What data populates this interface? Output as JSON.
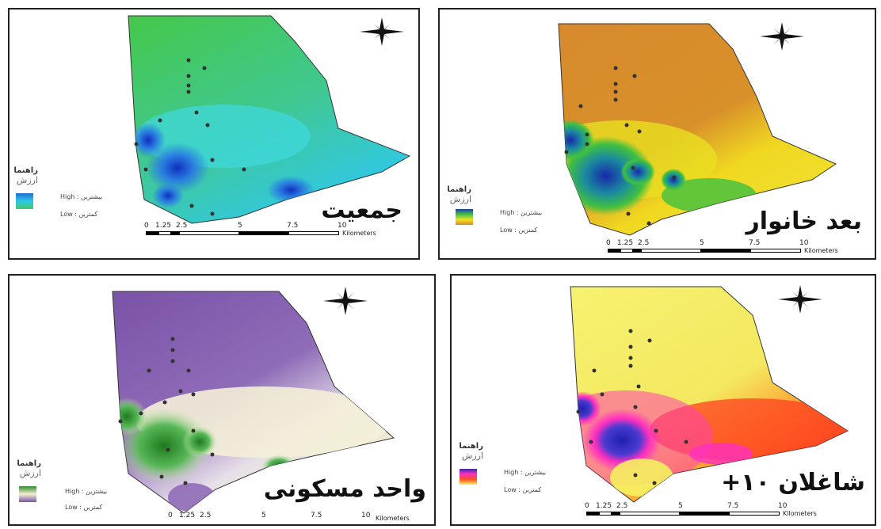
{
  "maps": [
    {
      "id": "population",
      "title": "جمعیت",
      "legend_title": "راهنما",
      "legend_subtitle": "ارزش",
      "high_label": "High : بیشترین",
      "low_label": "Low : کمترین",
      "ramp": [
        "#1e6fd0",
        "#2fc8e8",
        "#45c86a"
      ]
    },
    {
      "id": "household-size",
      "title": "بعد خانوار",
      "legend_title": "راهنما",
      "legend_subtitle": "ارزش",
      "high_label": "High : بیشترین",
      "low_label": "Low : کمترین",
      "ramp": [
        "#1a3fa0",
        "#3fc04a",
        "#f0e020",
        "#d98a2b"
      ]
    },
    {
      "id": "housing-units",
      "title": "واحد مسکونی",
      "legend_title": "راهنما",
      "legend_subtitle": "ارزش",
      "high_label": "High : بیشترین",
      "low_label": "Low : کمترین",
      "ramp": [
        "#2e8a2e",
        "#f3f0d0",
        "#7a52a8"
      ]
    },
    {
      "id": "employed-10plus",
      "title": "شاغلان ۱۰+",
      "legend_title": "راهنما",
      "legend_subtitle": "ارزش",
      "high_label": "High : بیشترین",
      "low_label": "Low : کمترین",
      "ramp": [
        "#3a2aa8",
        "#ff30c0",
        "#ff5020",
        "#f5f060"
      ]
    }
  ],
  "scale_bar": {
    "ticks": [
      "0",
      "1.25",
      "2.5",
      "5",
      "7.5",
      "10"
    ],
    "unit": "Kilometers"
  },
  "north_arrow_icon": "compass-rose-icon"
}
